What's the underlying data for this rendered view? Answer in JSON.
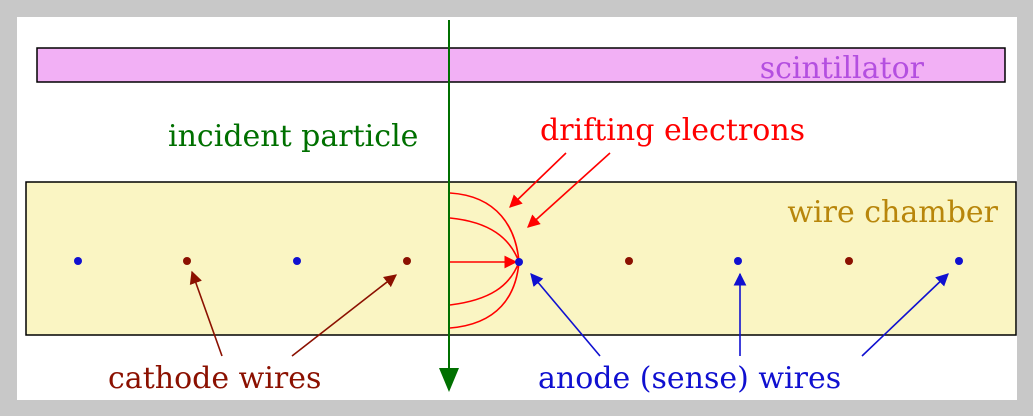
{
  "labels": {
    "scintillator": "scintillator",
    "incident_particle": "incident particle",
    "drifting_electrons": "drifting electrons",
    "wire_chamber": "wire chamber",
    "cathode_wires": "cathode wires",
    "anode_wires": "anode (sense) wires"
  },
  "colors": {
    "background_frame": "#c8c8c8",
    "panel": "#ffffff",
    "scintillator_fill": "#f2b0f5",
    "scintillator_text": "#b44fe0",
    "chamber_fill": "#faf5c3",
    "chamber_text": "#b8860b",
    "particle": "#007000",
    "electrons": "#ff0000",
    "cathode": "#8b1000",
    "anode": "#1010d0"
  },
  "wires": [
    "anode",
    "cathode",
    "anode",
    "cathode",
    "anode",
    "cathode",
    "anode",
    "cathode",
    "anode"
  ]
}
